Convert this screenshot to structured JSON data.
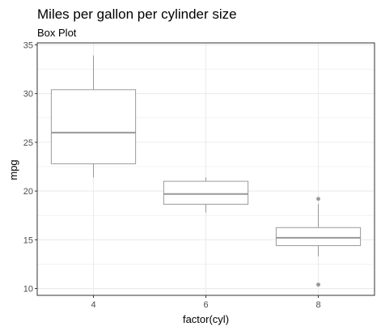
{
  "chart_data": {
    "type": "box",
    "title": "Miles per gallon per cylinder size",
    "subtitle": "Box Plot",
    "xlabel": "factor(cyl)",
    "ylabel": "mpg",
    "categories": [
      "4",
      "6",
      "8"
    ],
    "ylim": [
      9.3,
      35.2
    ],
    "yticks": [
      10,
      15,
      20,
      25,
      30,
      35
    ],
    "grid": true,
    "legend": "none",
    "boxes": [
      {
        "category": "4",
        "min": 21.4,
        "q1": 22.8,
        "median": 26.0,
        "q3": 30.4,
        "max": 33.9,
        "outliers": []
      },
      {
        "category": "6",
        "min": 17.8,
        "q1": 18.65,
        "median": 19.7,
        "q3": 21.0,
        "max": 21.4,
        "outliers": []
      },
      {
        "category": "8",
        "min": 13.3,
        "q1": 14.4,
        "median": 15.2,
        "q3": 16.25,
        "max": 18.7,
        "outliers": [
          10.4,
          10.4,
          19.2
        ]
      }
    ],
    "colors": {
      "box": "#999999",
      "grid": "#ebebeb",
      "border": "#333333",
      "text": "#4d4d4d"
    }
  }
}
